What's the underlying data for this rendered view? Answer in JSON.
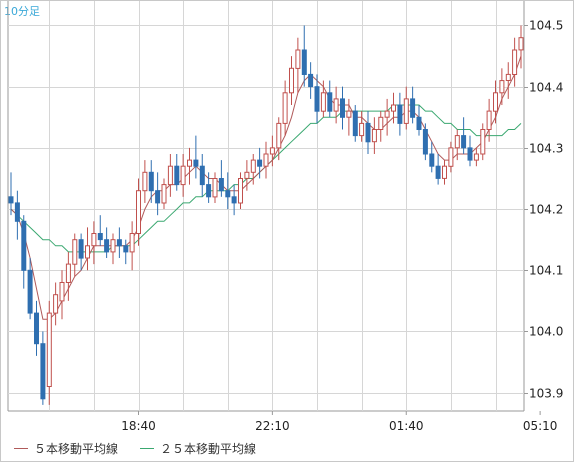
{
  "chart_data": {
    "type": "candlestick",
    "period_label": "10分足",
    "y_ticks": [
      "104.5",
      "104.4",
      "104.3",
      "104.2",
      "104.1",
      "104.0",
      "103.9"
    ],
    "ylim": [
      103.87,
      104.54
    ],
    "x_ticks": [
      {
        "label": "18:40",
        "index": 20
      },
      {
        "label": "22:10",
        "index": 41
      },
      {
        "label": "01:40",
        "index": 62
      },
      {
        "label": "05:10",
        "index": 83
      }
    ],
    "legend": [
      {
        "label": "５本移動平均線",
        "color": "#b05a5a"
      },
      {
        "label": "２５本移動平均線",
        "color": "#3aa870"
      }
    ],
    "colors": {
      "up": "#c0504d",
      "down": "#2f6fb0",
      "grid": "#d6d6d6",
      "ma5": "#b05a5a",
      "ma25": "#3aa870"
    },
    "candles": [
      [
        104.22,
        104.26,
        104.19,
        104.21
      ],
      [
        104.21,
        104.23,
        104.15,
        104.18
      ],
      [
        104.18,
        104.19,
        104.07,
        104.1
      ],
      [
        104.1,
        104.12,
        104.02,
        104.03
      ],
      [
        104.03,
        104.05,
        103.96,
        103.98
      ],
      [
        103.98,
        104.0,
        103.88,
        103.89
      ],
      [
        103.91,
        104.05,
        103.88,
        104.03
      ],
      [
        104.03,
        104.08,
        104.01,
        104.06
      ],
      [
        104.05,
        104.1,
        104.02,
        104.08
      ],
      [
        104.08,
        104.13,
        104.05,
        104.11
      ],
      [
        104.11,
        104.16,
        104.09,
        104.15
      ],
      [
        104.15,
        104.16,
        104.1,
        104.12
      ],
      [
        104.12,
        104.17,
        104.1,
        104.14
      ],
      [
        104.14,
        104.18,
        104.11,
        104.16
      ],
      [
        104.16,
        104.19,
        104.14,
        104.15
      ],
      [
        104.15,
        104.17,
        104.12,
        104.13
      ],
      [
        104.13,
        104.16,
        104.11,
        104.15
      ],
      [
        104.15,
        104.17,
        104.12,
        104.14
      ],
      [
        104.14,
        104.15,
        104.11,
        104.13
      ],
      [
        104.13,
        104.18,
        104.1,
        104.16
      ],
      [
        104.16,
        104.25,
        104.14,
        104.23
      ],
      [
        104.23,
        104.28,
        104.21,
        104.26
      ],
      [
        104.26,
        104.28,
        104.21,
        104.23
      ],
      [
        104.23,
        104.26,
        104.19,
        104.21
      ],
      [
        104.21,
        104.25,
        104.2,
        104.24
      ],
      [
        104.24,
        104.29,
        104.22,
        104.27
      ],
      [
        104.27,
        104.29,
        104.23,
        104.24
      ],
      [
        104.24,
        104.29,
        104.22,
        104.27
      ],
      [
        104.27,
        104.3,
        104.24,
        104.28
      ],
      [
        104.28,
        104.32,
        104.25,
        104.27
      ],
      [
        104.27,
        104.29,
        104.22,
        104.24
      ],
      [
        104.24,
        104.26,
        104.21,
        104.22
      ],
      [
        104.22,
        104.26,
        104.21,
        104.25
      ],
      [
        104.25,
        104.28,
        104.22,
        104.23
      ],
      [
        104.23,
        104.26,
        104.2,
        104.22
      ],
      [
        104.22,
        104.24,
        104.19,
        104.21
      ],
      [
        104.21,
        104.26,
        104.2,
        104.25
      ],
      [
        104.25,
        104.28,
        104.23,
        104.26
      ],
      [
        104.26,
        104.29,
        104.24,
        104.28
      ],
      [
        104.28,
        104.3,
        104.25,
        104.27
      ],
      [
        104.27,
        104.31,
        104.25,
        104.29
      ],
      [
        104.29,
        104.32,
        104.27,
        104.3
      ],
      [
        104.3,
        104.35,
        104.28,
        104.34
      ],
      [
        104.34,
        104.41,
        104.32,
        104.39
      ],
      [
        104.39,
        104.45,
        104.37,
        104.43
      ],
      [
        104.43,
        104.48,
        104.39,
        104.46
      ],
      [
        104.46,
        104.5,
        104.4,
        104.42
      ],
      [
        104.42,
        104.44,
        104.38,
        104.4
      ],
      [
        104.4,
        104.42,
        104.34,
        104.36
      ],
      [
        104.36,
        104.41,
        104.35,
        104.39
      ],
      [
        104.39,
        104.41,
        104.35,
        104.36
      ],
      [
        104.36,
        104.4,
        104.34,
        104.38
      ],
      [
        104.38,
        104.4,
        104.33,
        104.35
      ],
      [
        104.35,
        104.38,
        104.32,
        104.36
      ],
      [
        104.36,
        104.37,
        104.31,
        104.32
      ],
      [
        104.32,
        104.36,
        104.31,
        104.34
      ],
      [
        104.34,
        104.36,
        104.29,
        104.31
      ],
      [
        104.31,
        104.35,
        104.29,
        104.33
      ],
      [
        104.33,
        104.36,
        104.31,
        104.35
      ],
      [
        104.35,
        104.38,
        104.32,
        104.36
      ],
      [
        104.36,
        104.39,
        104.34,
        104.37
      ],
      [
        104.37,
        104.39,
        104.32,
        104.34
      ],
      [
        104.34,
        104.4,
        104.33,
        104.38
      ],
      [
        104.38,
        104.4,
        104.34,
        104.35
      ],
      [
        104.35,
        104.37,
        104.32,
        104.33
      ],
      [
        104.33,
        104.34,
        104.28,
        104.29
      ],
      [
        104.29,
        104.31,
        104.26,
        104.27
      ],
      [
        104.27,
        104.29,
        104.24,
        104.25
      ],
      [
        104.25,
        104.28,
        104.24,
        104.27
      ],
      [
        104.27,
        104.31,
        104.26,
        104.3
      ],
      [
        104.3,
        104.33,
        104.28,
        104.32
      ],
      [
        104.32,
        104.35,
        104.29,
        104.3
      ],
      [
        104.3,
        104.32,
        104.27,
        104.28
      ],
      [
        104.28,
        104.3,
        104.27,
        104.29
      ],
      [
        104.29,
        104.34,
        104.28,
        104.33
      ],
      [
        104.33,
        104.38,
        104.31,
        104.36
      ],
      [
        104.36,
        104.41,
        104.34,
        104.39
      ],
      [
        104.39,
        104.43,
        104.37,
        104.41
      ],
      [
        104.41,
        104.44,
        104.38,
        104.42
      ],
      [
        104.42,
        104.48,
        104.4,
        104.46
      ],
      [
        104.46,
        104.5,
        104.43,
        104.48
      ]
    ],
    "ma5": [
      104.2,
      104.19,
      104.16,
      104.12,
      104.07,
      104.02,
      104.02,
      104.03,
      104.05,
      104.07,
      104.09,
      104.1,
      104.12,
      104.14,
      104.14,
      104.14,
      104.14,
      104.14,
      104.14,
      104.15,
      104.17,
      104.2,
      104.22,
      104.23,
      104.23,
      104.24,
      104.24,
      104.25,
      104.26,
      104.27,
      104.26,
      104.25,
      104.25,
      104.24,
      104.23,
      104.23,
      104.23,
      104.24,
      104.25,
      104.26,
      104.27,
      104.28,
      104.3,
      104.32,
      104.35,
      104.39,
      104.41,
      104.42,
      104.41,
      104.4,
      104.38,
      104.37,
      104.37,
      104.37,
      104.35,
      104.35,
      104.34,
      104.33,
      104.33,
      104.34,
      104.35,
      104.35,
      104.36,
      104.36,
      104.35,
      104.33,
      104.31,
      104.29,
      104.28,
      104.28,
      104.29,
      104.29,
      104.29,
      104.3,
      104.31,
      104.33,
      104.35,
      104.38,
      104.4,
      104.42,
      104.45
    ],
    "ma25": [
      104.2,
      104.19,
      104.18,
      104.17,
      104.16,
      104.15,
      104.15,
      104.14,
      104.14,
      104.13,
      104.13,
      104.13,
      104.13,
      104.13,
      104.13,
      104.13,
      104.14,
      104.14,
      104.14,
      104.14,
      104.15,
      104.16,
      104.17,
      104.18,
      104.18,
      104.19,
      104.2,
      104.21,
      104.21,
      104.22,
      104.22,
      104.23,
      104.23,
      104.23,
      104.23,
      104.24,
      104.24,
      104.25,
      104.25,
      104.26,
      104.27,
      104.28,
      104.29,
      104.3,
      104.31,
      104.32,
      104.33,
      104.34,
      104.34,
      104.35,
      104.35,
      104.35,
      104.36,
      104.36,
      104.36,
      104.36,
      104.36,
      104.36,
      104.36,
      104.36,
      104.37,
      104.37,
      104.37,
      104.37,
      104.37,
      104.36,
      104.36,
      104.35,
      104.34,
      104.34,
      104.33,
      104.33,
      104.33,
      104.32,
      104.32,
      104.32,
      104.32,
      104.32,
      104.33,
      104.33,
      104.34
    ]
  }
}
